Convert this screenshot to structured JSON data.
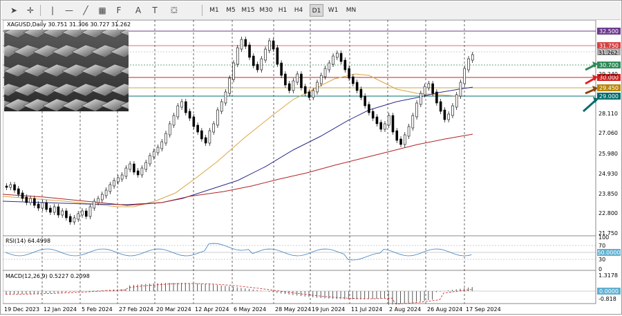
{
  "toolbar": {
    "tools": [
      {
        "name": "cursor-tool",
        "glyph": "➤"
      },
      {
        "name": "crosshair-tool",
        "glyph": "✛"
      },
      {
        "name": "vertical-line-tool",
        "glyph": "|"
      },
      {
        "name": "horizontal-line-tool",
        "glyph": "—"
      },
      {
        "name": "trendline-tool",
        "glyph": "╱"
      },
      {
        "name": "channel-tool",
        "glyph": "▦"
      },
      {
        "name": "fibonacci-tool",
        "glyph": "F"
      },
      {
        "name": "text-tool",
        "glyph": "A"
      },
      {
        "name": "label-tool",
        "glyph": "T"
      },
      {
        "name": "shapes-tool",
        "glyph": "⛋"
      }
    ],
    "timeframes": [
      "M1",
      "M5",
      "M15",
      "M30",
      "H1",
      "H4",
      "D1",
      "W1",
      "MN"
    ],
    "active_timeframe": "D1"
  },
  "chart": {
    "header": "XAGUSD,Daily  30.751 31.306 30.727 31.262",
    "price_labels": [
      {
        "text": "32.500",
        "bg": "#6b3a8c",
        "fg": "#ffffff"
      },
      {
        "text": "31.750",
        "bg": "#d84040",
        "fg": "#ffffff"
      },
      {
        "text": "31.262",
        "bg": "#a8a8a8",
        "fg": "#ffffff"
      },
      {
        "text": "30.700",
        "bg": "#2e8b57",
        "fg": "#ffffff"
      },
      {
        "text": "30.000",
        "bg": "#cc2222",
        "fg": "#ffffff"
      },
      {
        "text": "29.450",
        "bg": "#b8860b",
        "fg": "#ffffff"
      },
      {
        "text": "29.000",
        "bg": "#006d6d",
        "fg": "#ffffff"
      }
    ],
    "axis_ticks": [
      "32.370",
      "31.262",
      "30.700",
      "29.240",
      "29.450",
      "29.000",
      "28.110",
      "27.060",
      "25.980",
      "24.930",
      "23.850",
      "22.800",
      "21.750"
    ],
    "dates": [
      "19 Dec 2023",
      "12 Jan 2024",
      "5 Feb 2024",
      "27 Feb 2024",
      "20 Mar 2024",
      "12 Apr 2024",
      "6 May 2024",
      "28 May 2024",
      "19 Jun 2024",
      "11 Jul 2024",
      "2 Aug 2024",
      "26 Aug 2024",
      "17 Sep 2024"
    ],
    "arrow_colors": [
      "#2e8b57",
      "#e02020",
      "#8b4513",
      "#006d6d"
    ]
  },
  "rsi": {
    "label": "RSI(14) 64.4998",
    "ticks": [
      "100",
      "70",
      "50.0000",
      "30",
      "0"
    ]
  },
  "macd": {
    "label": "MACD(12,26,9) 0.5227 0.2098",
    "ticks": [
      "1.3178",
      "0.0000",
      "-0.818"
    ]
  },
  "colors": {
    "ma_fast": "#d9a441",
    "ma_mid": "#2b2b8c",
    "ma_slow": "#b22222",
    "rsi_line": "#3a7fbf",
    "macd_signal": "#cc2222"
  }
}
